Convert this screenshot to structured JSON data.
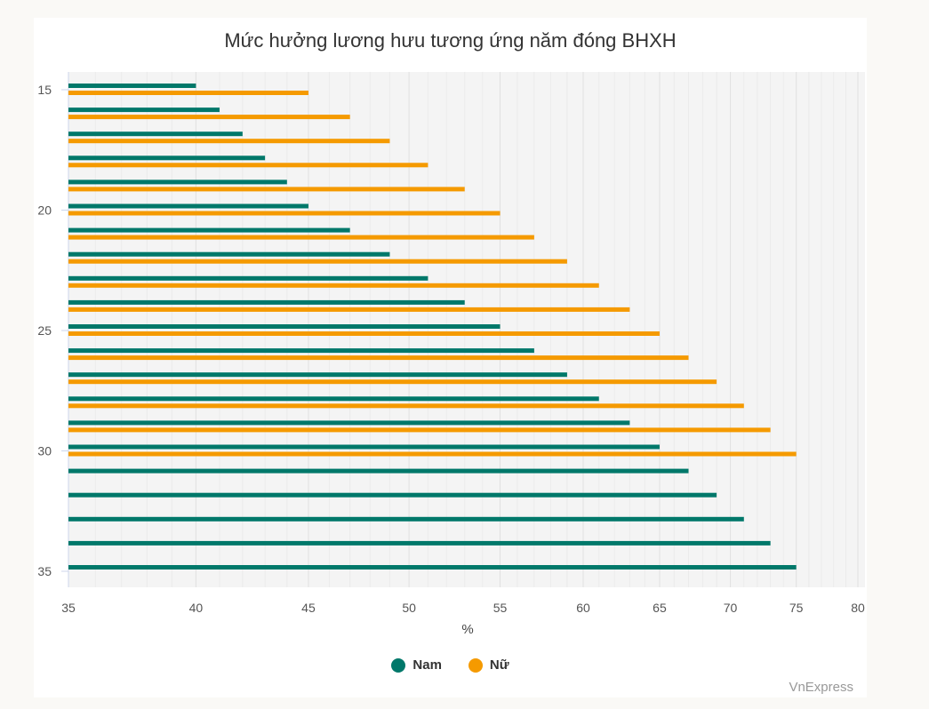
{
  "chart_data": {
    "type": "bar",
    "orientation": "horizontal",
    "title": "Mức hưởng lương hưu tương ứng năm đóng BHXH",
    "xlabel": "%",
    "ylabel": "",
    "xscale": "log",
    "xlim": [
      35,
      80
    ],
    "xticks": [
      35,
      40,
      45,
      50,
      55,
      60,
      65,
      70,
      75,
      80
    ],
    "yticks": [
      15,
      20,
      25,
      30,
      35
    ],
    "categories": [
      15,
      16,
      17,
      18,
      19,
      20,
      21,
      22,
      23,
      24,
      25,
      26,
      27,
      28,
      29,
      30,
      31,
      32,
      33,
      34,
      35
    ],
    "series": [
      {
        "name": "Nam",
        "color": "#00786a",
        "values": [
          40,
          41,
          42,
          43,
          44,
          45,
          47,
          49,
          51,
          53,
          55,
          57,
          59,
          61,
          63,
          65,
          67,
          69,
          71,
          73,
          75
        ]
      },
      {
        "name": "Nữ",
        "color": "#f59a00",
        "values": [
          45,
          47,
          49,
          51,
          53,
          55,
          57,
          59,
          61,
          63,
          65,
          67,
          69,
          71,
          73,
          75,
          null,
          null,
          null,
          null,
          null
        ]
      }
    ],
    "legend": "bottom-center",
    "grid": true
  },
  "credit": "VnExpress"
}
